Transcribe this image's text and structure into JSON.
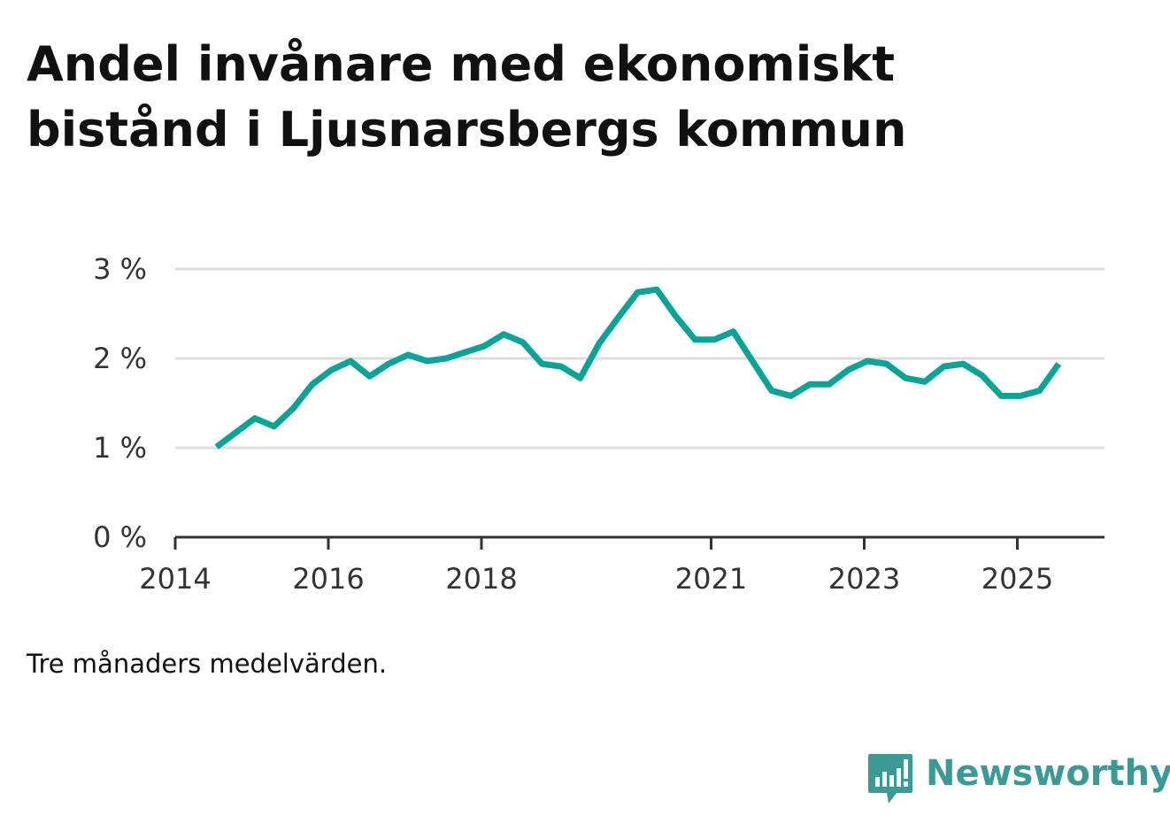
{
  "chart_data": {
    "type": "line",
    "title": "Andel invånare med ekonomiskt bistånd i Ljusnarsbergs kommun",
    "xlabel": "",
    "ylabel": "",
    "ylim": [
      0,
      3
    ],
    "y_ticks": [
      0,
      1,
      2,
      3
    ],
    "y_tick_labels": [
      "0 %",
      "1 %",
      "2 %",
      "3 %"
    ],
    "x_range": [
      2014.0,
      2026.0
    ],
    "x_ticks": [
      2014,
      2016,
      2018,
      2021,
      2023,
      2025
    ],
    "x_tick_labels": [
      "2014",
      "2016",
      "2018",
      "2021",
      "2023",
      "2025"
    ],
    "grid": true,
    "line_color": "#0aa397",
    "series": [
      {
        "name": "Andel invånare med ekonomiskt bistånd",
        "x": [
          2014.54,
          2014.79,
          2015.04,
          2015.29,
          2015.54,
          2015.79,
          2016.04,
          2016.29,
          2016.54,
          2016.79,
          2017.04,
          2017.29,
          2017.54,
          2017.79,
          2018.04,
          2018.29,
          2018.54,
          2018.79,
          2019.04,
          2019.29,
          2019.54,
          2019.79,
          2020.04,
          2020.29,
          2020.54,
          2020.79,
          2021.04,
          2021.29,
          2021.54,
          2021.79,
          2022.04,
          2022.29,
          2022.54,
          2022.79,
          2023.04,
          2023.29,
          2023.54,
          2023.79,
          2024.04,
          2024.29,
          2024.54,
          2024.79,
          2025.04,
          2025.29,
          2025.54
        ],
        "values": [
          1.01,
          1.17,
          1.33,
          1.24,
          1.44,
          1.71,
          1.87,
          1.97,
          1.8,
          1.94,
          2.04,
          1.97,
          2.0,
          2.07,
          2.14,
          2.27,
          2.18,
          1.94,
          1.91,
          1.78,
          2.17,
          2.46,
          2.74,
          2.77,
          2.47,
          2.21,
          2.21,
          2.3,
          1.97,
          1.64,
          1.58,
          1.71,
          1.71,
          1.87,
          1.97,
          1.94,
          1.78,
          1.74,
          1.91,
          1.94,
          1.81,
          1.58,
          1.58,
          1.64,
          1.94
        ]
      }
    ]
  },
  "footnote": "Tre månaders medelvärden.",
  "brand": {
    "name": "Newsworthy",
    "color": "#3c9a96",
    "icon": "newsworthy-logo-icon"
  }
}
